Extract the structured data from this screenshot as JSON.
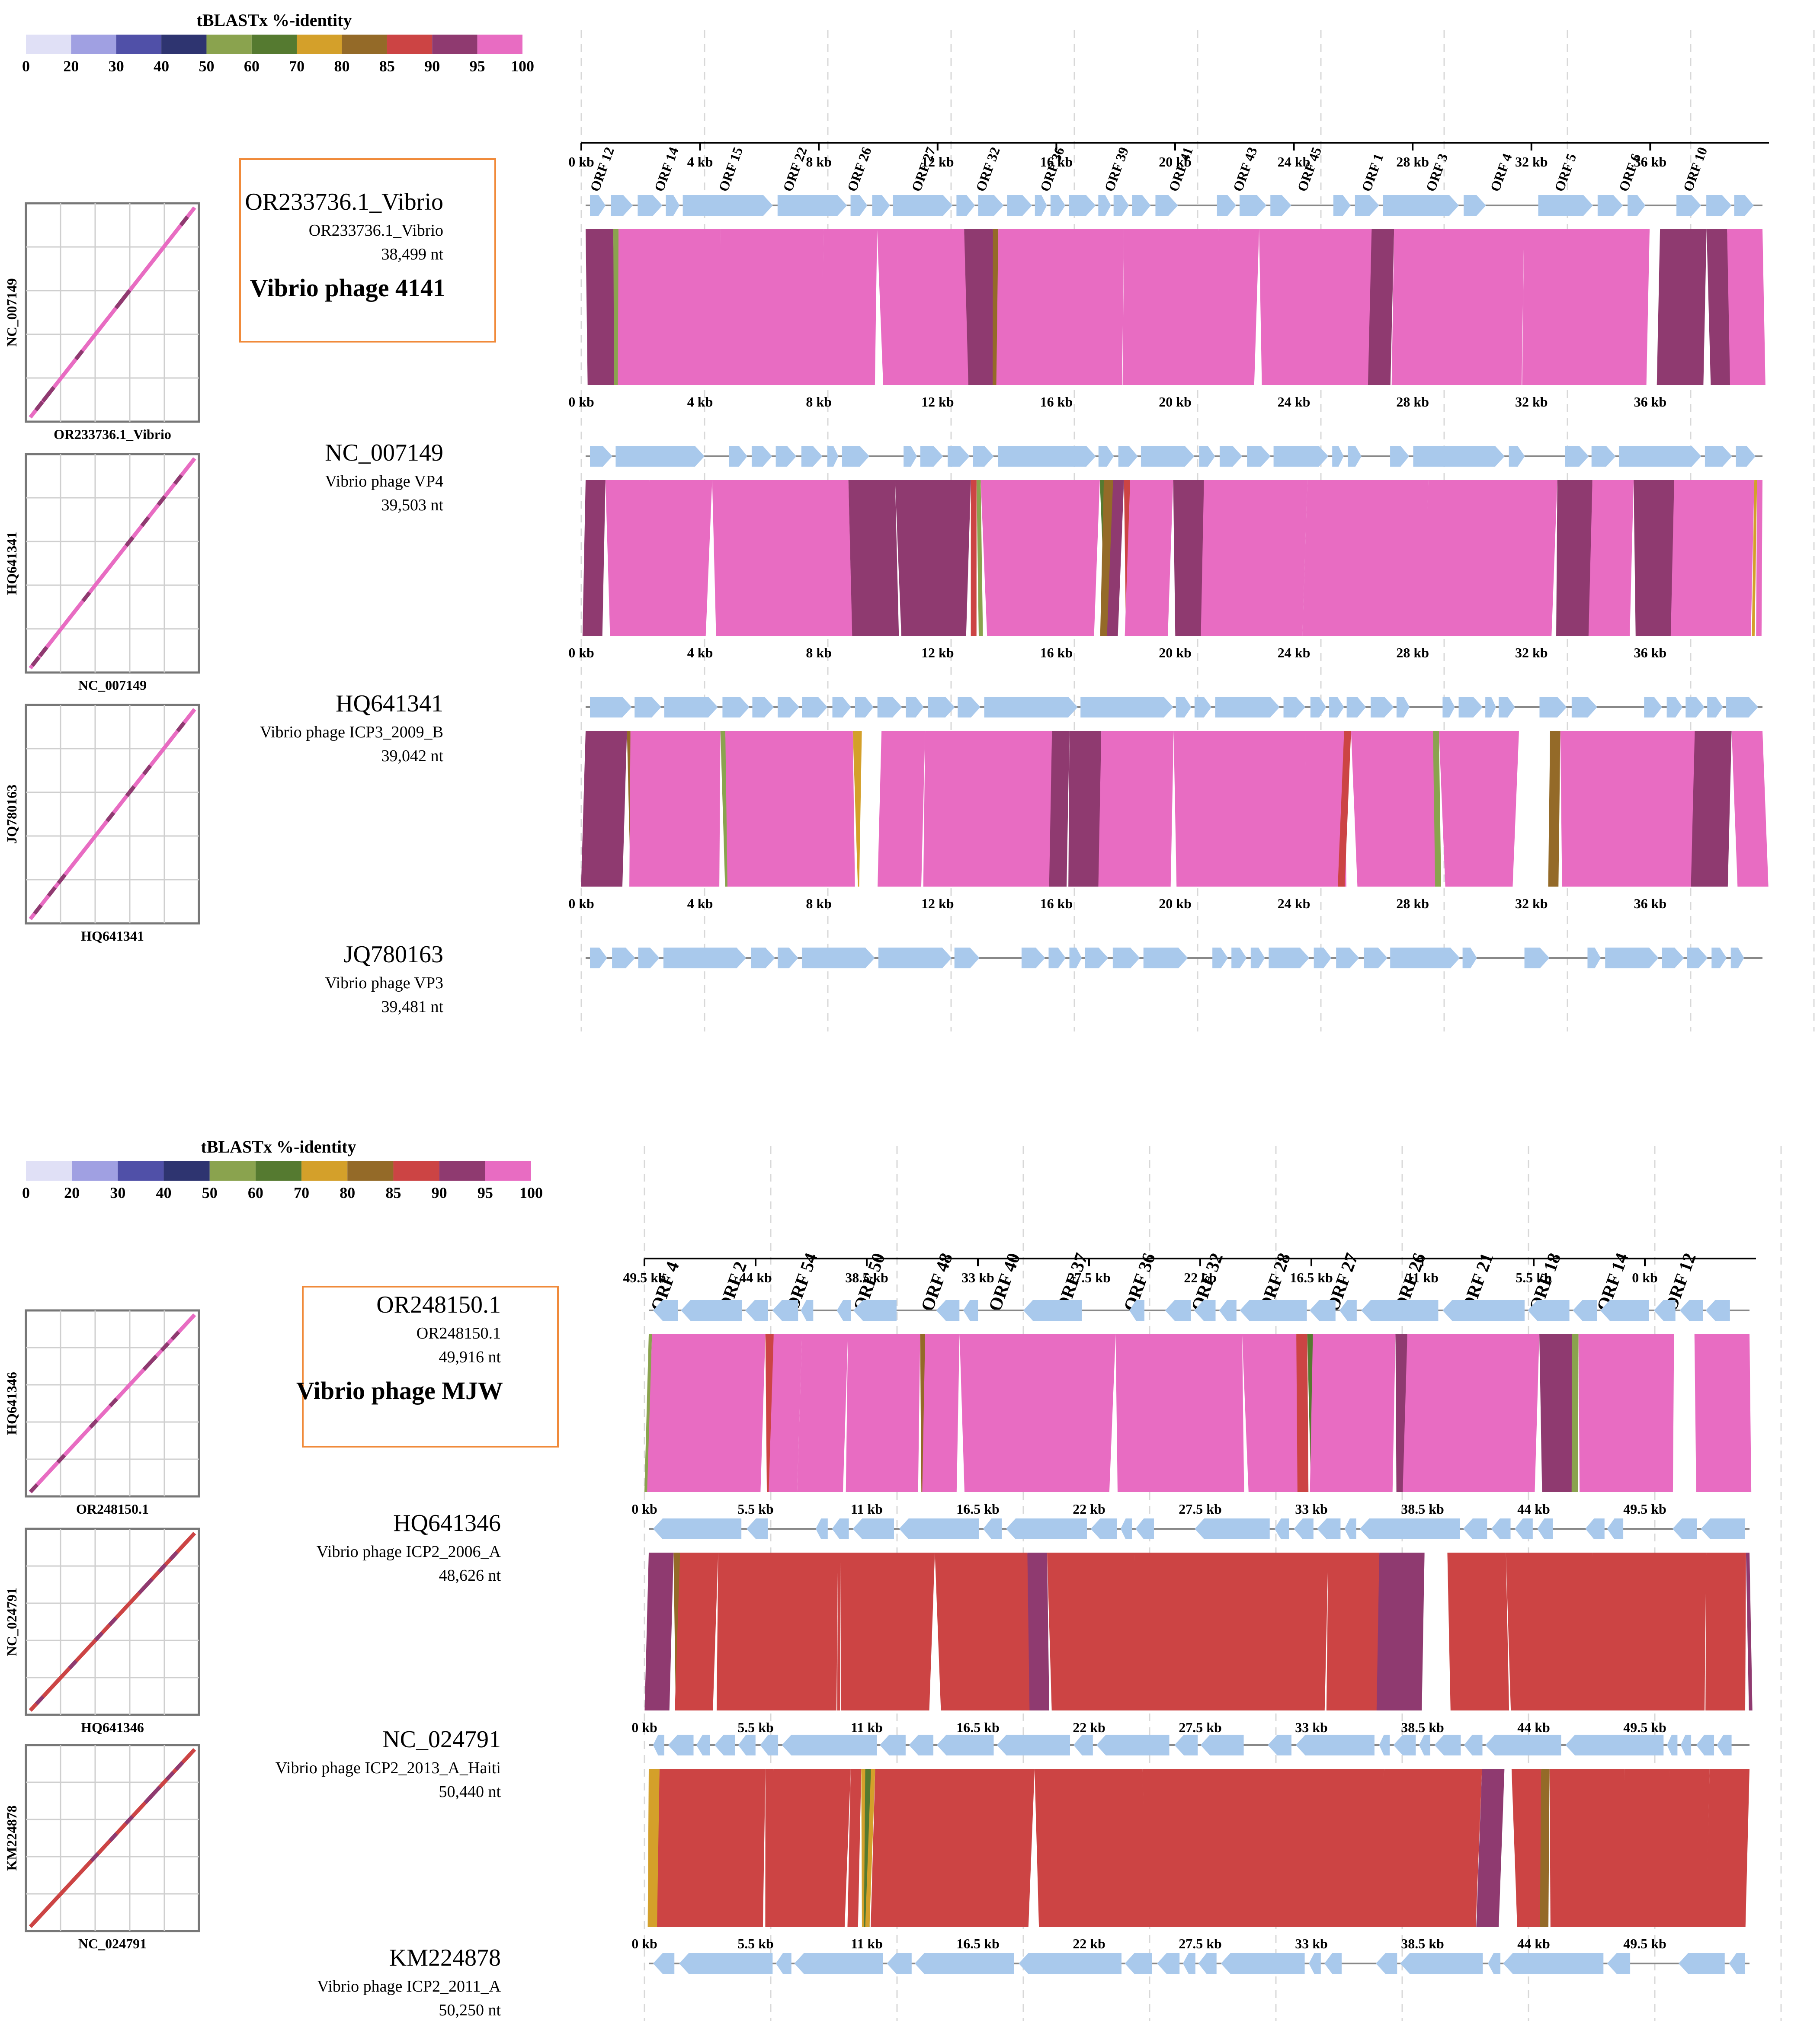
{
  "panels": [
    {
      "id": "A",
      "legend": {
        "title": "tBLASTx %-identity",
        "ticks": [
          "0",
          "20",
          "30",
          "40",
          "50",
          "60",
          "70",
          "80",
          "85",
          "90",
          "95",
          "100"
        ],
        "colors": [
          "#e0e0f6",
          "#a0a0e2",
          "#5050a8",
          "#2e3470",
          "#8aa34e",
          "#557a30",
          "#d4a02a",
          "#946a28",
          "#cc4444",
          "#8f3a70",
          "#e86cc2"
        ]
      },
      "top_axis": {
        "ticks": [
          "0 kb",
          "4 kb",
          "8 kb",
          "12 kb",
          "16 kb",
          "20 kb",
          "24 kb",
          "28 kb",
          "32 kb",
          "36 kb"
        ],
        "orfs": [
          "ORF 12",
          "ORF 14",
          "ORF 15",
          "ORF 22",
          "ORF 26",
          "ORF 27",
          "ORF 32",
          "ORF 36",
          "ORF 39",
          "ORF 41",
          "ORF 43",
          "ORF 45",
          "ORF 1",
          "ORF 3",
          "ORF 4",
          "ORF 5",
          "ORF 6",
          "ORF 10"
        ]
      },
      "genomes": [
        {
          "accession": "OR233736.1_Vibrio",
          "definition": "OR233736.1_Vibrio",
          "length": "38,499 nt",
          "highlight": "Vibrio phage 4141"
        },
        {
          "accession": "NC_007149",
          "definition": "Vibrio phage VP4",
          "length": "39,503 nt"
        },
        {
          "accession": "HQ641341",
          "definition": "Vibrio phage ICP3_2009_B",
          "length": "39,042 nt"
        },
        {
          "accession": "JQ780163",
          "definition": "Vibrio phage VP3",
          "length": "39,481 nt"
        }
      ],
      "scale_ticks": [
        "0 kb",
        "4 kb",
        "8 kb",
        "12 kb",
        "16 kb",
        "20 kb",
        "24 kb",
        "28 kb",
        "32 kb",
        "36 kb"
      ],
      "dotplots": [
        {
          "ylabel": "NC_007149",
          "xlabel": "OR233736.1_Vibrio"
        },
        {
          "ylabel": "HQ641341",
          "xlabel": "NC_007149"
        },
        {
          "ylabel": "JQ780163",
          "xlabel": "HQ641341"
        }
      ]
    },
    {
      "id": "B",
      "legend": {
        "title": "tBLASTx %-identity",
        "ticks": [
          "0",
          "20",
          "30",
          "40",
          "50",
          "60",
          "70",
          "80",
          "85",
          "90",
          "95",
          "100"
        ],
        "colors": [
          "#e0e0f6",
          "#a0a0e2",
          "#5050a8",
          "#2e3470",
          "#8aa34e",
          "#557a30",
          "#d4a02a",
          "#946a28",
          "#cc4444",
          "#8f3a70",
          "#e86cc2"
        ]
      },
      "top_axis": {
        "ticks": [
          "49.5 kb",
          "44 kb",
          "38.5 kb",
          "33 kb",
          "27.5 kb",
          "22 kb",
          "16.5 kb",
          "11 kb",
          "5.5 kb",
          "0 kb"
        ],
        "orfs": [
          "ORF 4",
          "ORF 2",
          "ORF 54",
          "ORF 50",
          "ORF 48",
          "ORF 40",
          "ORF 37",
          "ORF 36",
          "ORF 32",
          "ORF 28",
          "ORF 27",
          "ORF 26",
          "ORF 21",
          "ORF 18",
          "ORF 14",
          "ORF 12"
        ]
      },
      "genomes": [
        {
          "accession": "OR248150.1",
          "definition": "OR248150.1",
          "length": "49,916 nt",
          "highlight": "Vibrio phage MJW"
        },
        {
          "accession": "HQ641346",
          "definition": "Vibrio phage ICP2_2006_A",
          "length": "48,626 nt"
        },
        {
          "accession": "NC_024791",
          "definition": "Vibrio phage ICP2_2013_A_Haiti",
          "length": "50,440 nt"
        },
        {
          "accession": "KM224878",
          "definition": "Vibrio phage ICP2_2011_A",
          "length": "50,250 nt"
        }
      ],
      "scale_ticks": [
        "0 kb",
        "5.5 kb",
        "11 kb",
        "16.5 kb",
        "22 kb",
        "27.5 kb",
        "33 kb",
        "38.5 kb",
        "44 kb",
        "49.5 kb"
      ],
      "dotplots": [
        {
          "ylabel": "HQ641346",
          "xlabel": "OR248150.1"
        },
        {
          "ylabel": "NC_024791",
          "xlabel": "HQ641346"
        },
        {
          "ylabel": "KM224878",
          "xlabel": "NC_024791"
        }
      ]
    }
  ],
  "colors": {
    "gene": "#a9c9ec",
    "box": "#f08a3a",
    "line": "#888888",
    "grid": "#cfcfcf"
  }
}
